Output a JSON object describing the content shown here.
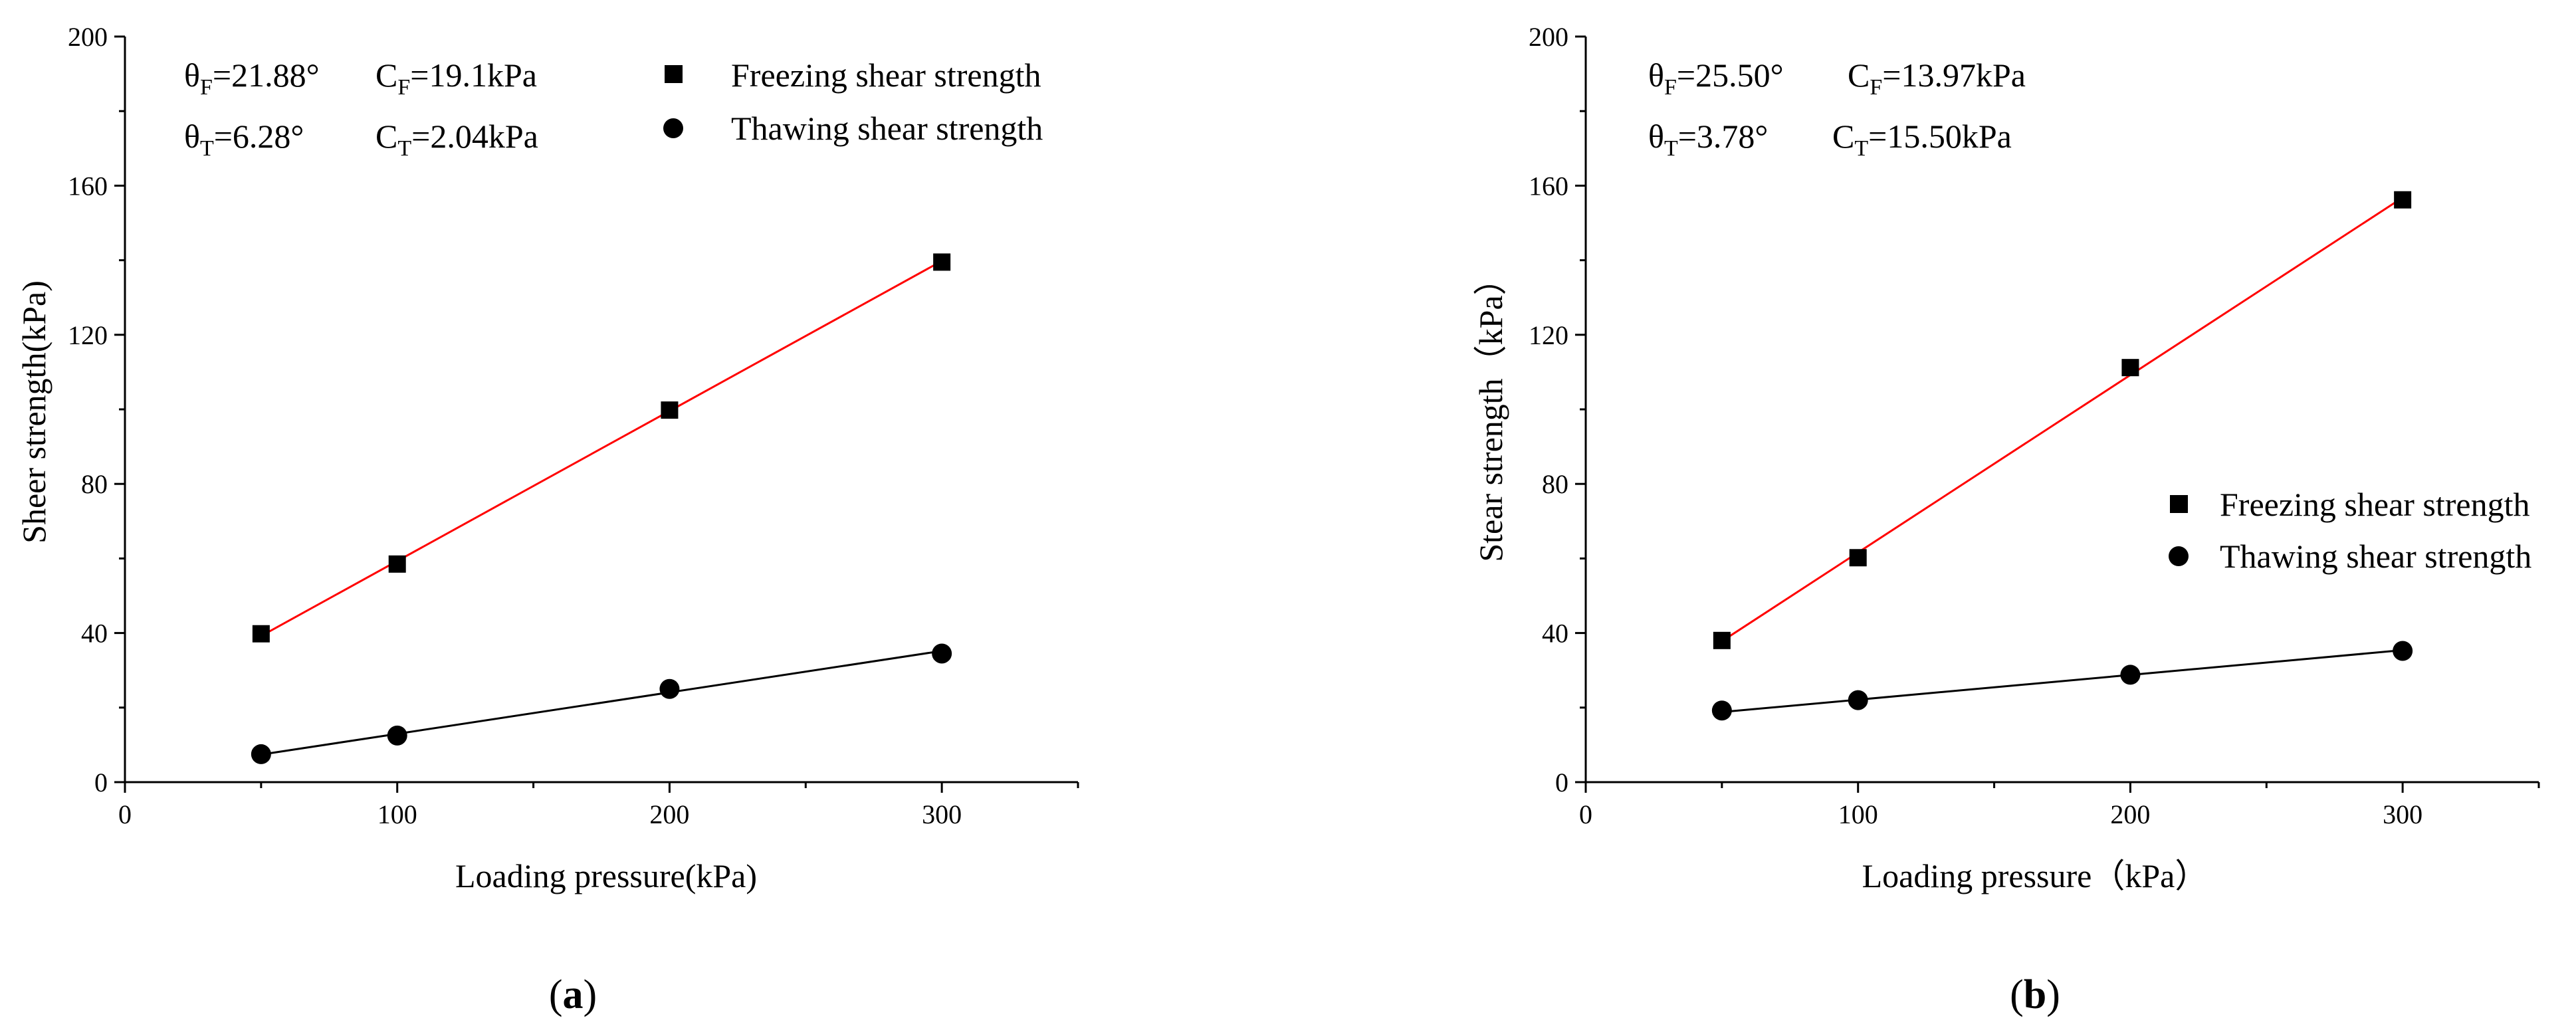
{
  "chart_data": [
    {
      "type": "scatter",
      "panel_label": "a",
      "xlabel": "Loading pressure(kPa)",
      "ylabel": "Sheer strength(kPa)",
      "xlim": [
        0,
        350
      ],
      "ylim": [
        0,
        200
      ],
      "x_ticks": [
        0,
        100,
        200,
        300
      ],
      "y_ticks": [
        0,
        40,
        80,
        120,
        160,
        200
      ],
      "series": [
        {
          "name": "Freezing shear strength",
          "marker": "square",
          "color": "#000000",
          "fit_color": "#ff0000",
          "x": [
            50,
            100,
            200,
            300
          ],
          "y": [
            39.8,
            58.5,
            99.8,
            139.5
          ],
          "fit_line": [
            [
              50,
              39.2
            ],
            [
              300,
              139.8
            ]
          ]
        },
        {
          "name": "Thawing shear strength",
          "marker": "circle",
          "color": "#000000",
          "fit_color": "#000000",
          "x": [
            50,
            100,
            200,
            300
          ],
          "y": [
            7.5,
            12.5,
            25.0,
            34.5
          ],
          "fit_line": [
            [
              50,
              7.4
            ],
            [
              300,
              35.2
            ]
          ]
        }
      ],
      "annotations": {
        "row1": {
          "theta_sym": "θ",
          "theta_sub": "F",
          "theta_val": "=21.88°",
          "c_sym": "C",
          "c_sub": "F",
          "c_val": "=19.1kPa"
        },
        "row2": {
          "theta_sym": "θ",
          "theta_sub": "T",
          "theta_val": "=6.28°",
          "c_sym": "C",
          "c_sub": "T",
          "c_val": "=2.04kPa"
        }
      },
      "legend_position": "top-right"
    },
    {
      "type": "scatter",
      "panel_label": "b",
      "xlabel": "Loading pressure（kPa）",
      "ylabel": "Stear strength（kPa）",
      "xlim": [
        0,
        350
      ],
      "ylim": [
        0,
        200
      ],
      "x_ticks": [
        0,
        100,
        200,
        300
      ],
      "y_ticks": [
        0,
        40,
        80,
        120,
        160,
        200
      ],
      "series": [
        {
          "name": "Freezing shear strength",
          "marker": "square",
          "color": "#000000",
          "fit_color": "#ff0000",
          "x": [
            50,
            100,
            200,
            300
          ],
          "y": [
            38.0,
            60.2,
            111.2,
            156.2
          ],
          "fit_line": [
            [
              50,
              37.8
            ],
            [
              300,
              156.8
            ]
          ]
        },
        {
          "name": "Thawing shear strength",
          "marker": "circle",
          "color": "#000000",
          "fit_color": "#000000",
          "x": [
            50,
            100,
            200,
            300
          ],
          "y": [
            19.2,
            22.0,
            28.8,
            35.2
          ],
          "fit_line": [
            [
              50,
              18.8
            ],
            [
              300,
              35.4
            ]
          ]
        }
      ],
      "annotations": {
        "row1": {
          "theta_sym": "θ",
          "theta_sub": "F",
          "theta_val": "=25.50°",
          "c_sym": "C",
          "c_sub": "F",
          "c_val": "=13.97kPa"
        },
        "row2": {
          "theta_sym": "θ",
          "theta_sub": "T",
          "theta_val": "=3.78°",
          "c_sym": "C",
          "c_sub": "T",
          "c_val": "=15.50kPa"
        }
      },
      "legend_position": "center-right"
    }
  ],
  "panel_labels": {
    "a": {
      "open": "(",
      "letter": "a",
      "close": ")"
    },
    "b": {
      "open": "(",
      "letter": "b",
      "close": ")"
    }
  }
}
